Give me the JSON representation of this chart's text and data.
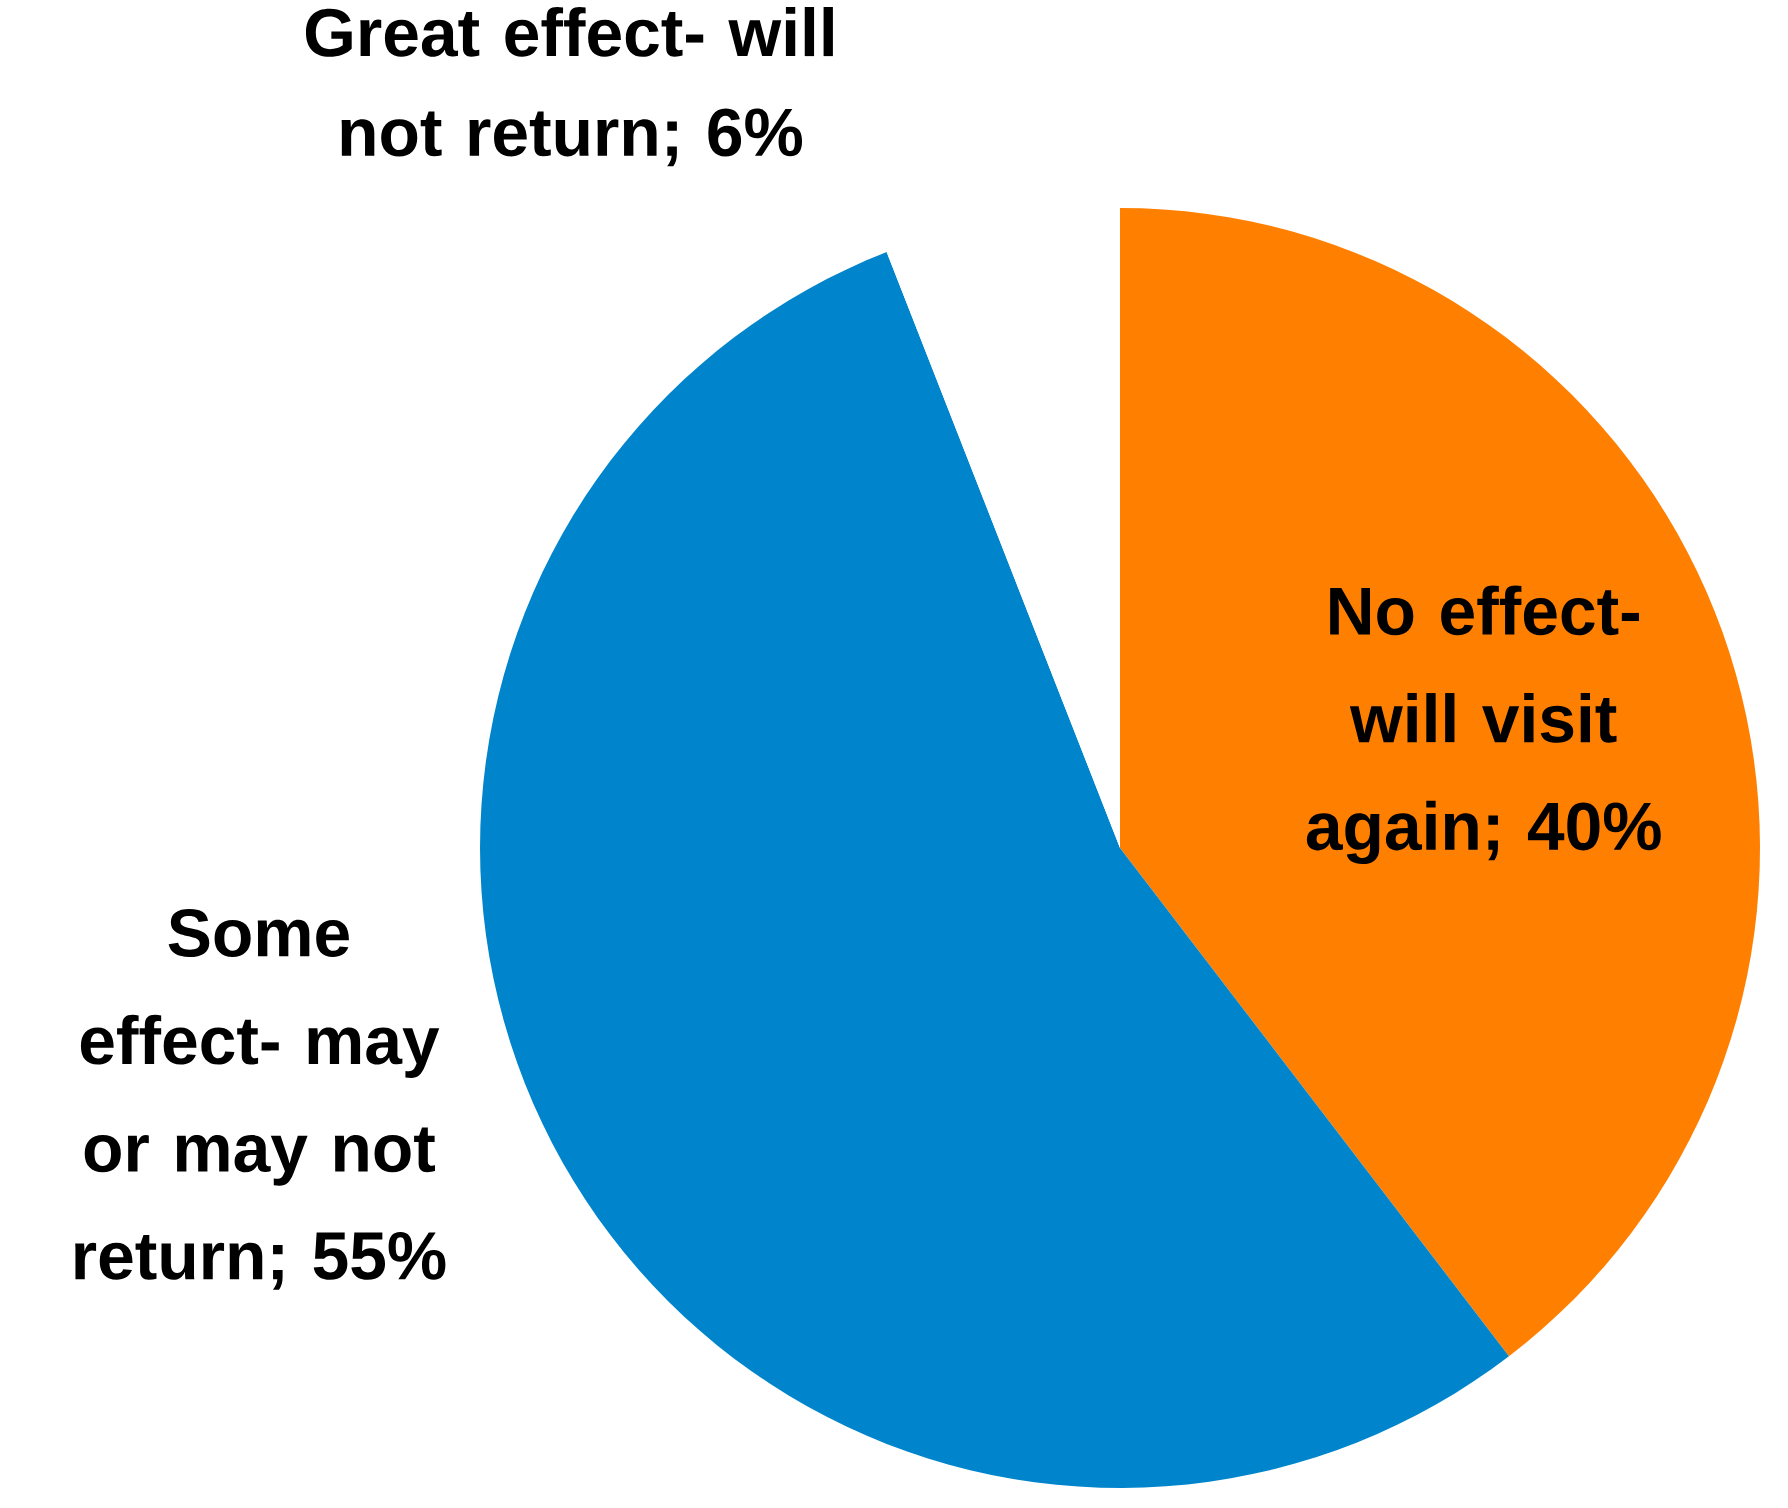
{
  "chart_data": {
    "type": "pie",
    "categories": [
      "No effect- will visit again",
      "Some effect- may or may not return",
      "Great effect- will not return"
    ],
    "values": [
      40,
      55,
      6
    ],
    "colors": [
      "#ff7f00",
      "#0085cc",
      "#ffffff"
    ],
    "value_labels": [
      "; 40%",
      "; 55%",
      "; 6%"
    ]
  }
}
